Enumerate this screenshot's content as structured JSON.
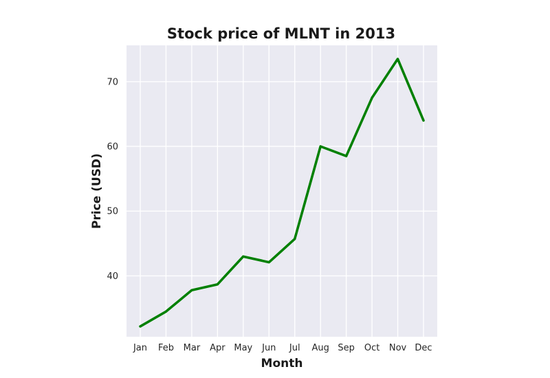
{
  "chart_data": {
    "type": "line",
    "title": "Stock price of MLNT in 2013",
    "xlabel": "Month",
    "ylabel": "Price (USD)",
    "categories": [
      "Jan",
      "Feb",
      "Mar",
      "Apr",
      "May",
      "Jun",
      "Jul",
      "Aug",
      "Sep",
      "Oct",
      "Nov",
      "Dec"
    ],
    "series": [
      {
        "values": [
          32.2,
          34.5,
          37.8,
          38.7,
          43.0,
          42.1,
          45.7,
          60.0,
          58.5,
          67.5,
          73.5,
          64.0
        ],
        "color": "#008000"
      }
    ],
    "yticks": [
      40,
      50,
      60,
      70
    ],
    "ylim": [
      30.6,
      75.6
    ],
    "grid": true,
    "background": "#eaeaf2",
    "legend": "none"
  }
}
